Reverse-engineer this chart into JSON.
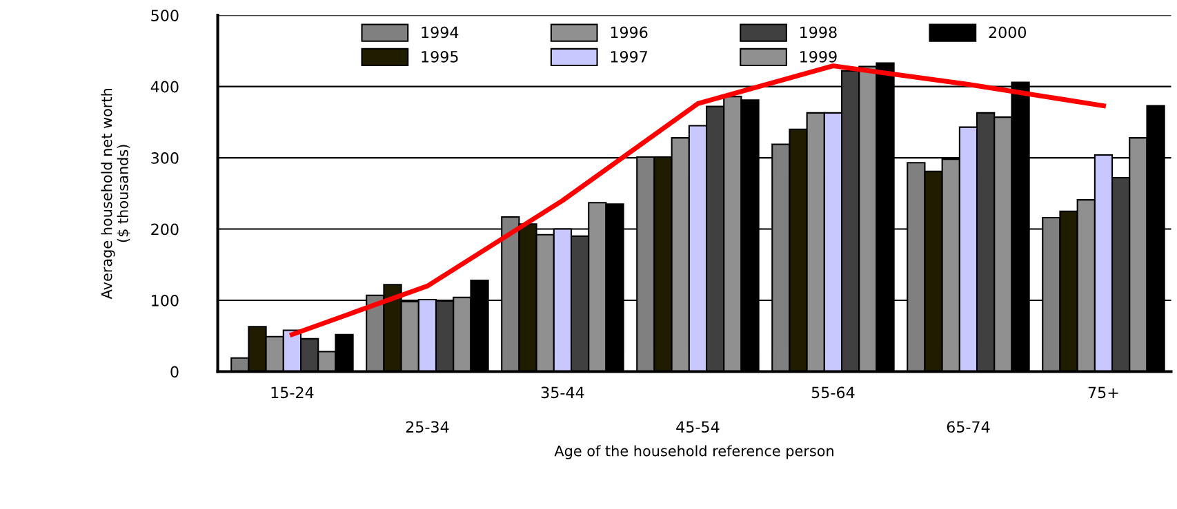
{
  "chart_data": {
    "type": "bar",
    "xlabel": "Age of the household reference person",
    "ylabel": "Average household net worth\n($ thousands)",
    "categories": [
      "15-24",
      "25-34",
      "35-44",
      "45-54",
      "55-64",
      "65-74",
      "75+"
    ],
    "series": [
      {
        "name": "1994",
        "color": "#808080",
        "values": [
          19,
          107,
          217,
          301,
          319,
          293,
          216
        ]
      },
      {
        "name": "1995",
        "color": "#201c00",
        "values": [
          63,
          122,
          207,
          301,
          340,
          281,
          225
        ]
      },
      {
        "name": "1996",
        "color": "#909090",
        "values": [
          49,
          98,
          192,
          328,
          363,
          298,
          241
        ]
      },
      {
        "name": "1997",
        "color": "#c8c8ff",
        "values": [
          58,
          101,
          200,
          345,
          363,
          343,
          304
        ]
      },
      {
        "name": "1998",
        "color": "#404040",
        "values": [
          46,
          99,
          190,
          372,
          422,
          363,
          272
        ]
      },
      {
        "name": "1999",
        "color": "#909090",
        "values": [
          28,
          104,
          237,
          386,
          428,
          357,
          328
        ]
      },
      {
        "name": "2000",
        "color": "#000000",
        "values": [
          52,
          128,
          235,
          381,
          433,
          406,
          373
        ]
      },
      {
        "type": "line",
        "color": "#ff0000",
        "values": [
          52,
          120,
          240,
          376,
          429,
          403,
          373
        ]
      }
    ],
    "ylim": [
      0,
      500
    ],
    "yticks": [
      0,
      100,
      200,
      300,
      400,
      500
    ],
    "grid": "y",
    "legend": "top"
  }
}
